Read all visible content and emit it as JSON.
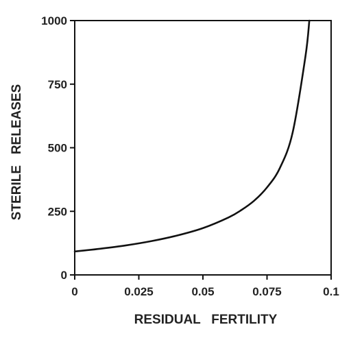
{
  "chart_data": {
    "type": "line",
    "title": "",
    "xlabel": "RESIDUAL   FERTILITY",
    "ylabel": "STERILE   RELEASES",
    "xlim": [
      0,
      0.1
    ],
    "ylim": [
      0,
      1000
    ],
    "xticks": [
      {
        "value": 0,
        "label": "0"
      },
      {
        "value": 0.025,
        "label": "0.025"
      },
      {
        "value": 0.05,
        "label": "0.05"
      },
      {
        "value": 0.075,
        "label": "0.075"
      },
      {
        "value": 0.1,
        "label": "0.1"
      }
    ],
    "yticks": [
      {
        "value": 0,
        "label": "0"
      },
      {
        "value": 250,
        "label": "250"
      },
      {
        "value": 500,
        "label": "500"
      },
      {
        "value": 750,
        "label": "750"
      },
      {
        "value": 1000,
        "label": "1000"
      }
    ],
    "grid": false,
    "legend": "none",
    "series": [
      {
        "color": "#111111",
        "x": [
          0,
          0.01,
          0.02,
          0.03,
          0.04,
          0.05,
          0.06,
          0.065,
          0.07,
          0.075,
          0.08,
          0.085,
          0.09,
          0.0915
        ],
        "y": [
          92,
          103,
          116,
          133,
          155,
          184,
          226,
          255,
          292,
          344,
          420,
          560,
          860,
          1000
        ]
      }
    ]
  }
}
